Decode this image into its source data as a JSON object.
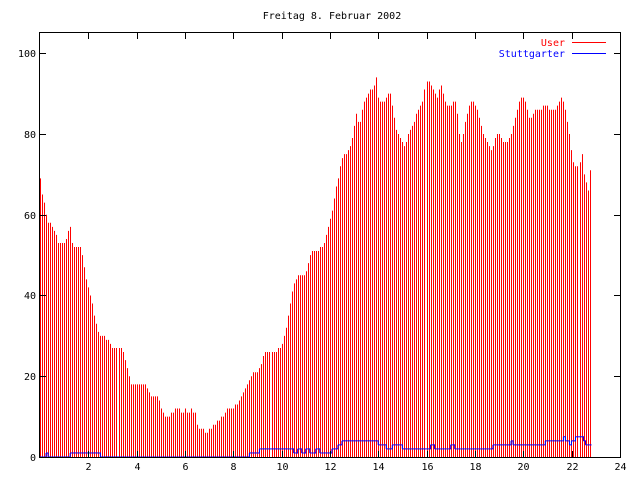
{
  "chart_data": {
    "type": "bar",
    "title": "Freitag 8. Februar 2002",
    "xlabel": "",
    "ylabel": "",
    "xlim": [
      0,
      24
    ],
    "ylim": [
      0,
      105
    ],
    "x_ticks": [
      "2",
      "4",
      "6",
      "8",
      "10",
      "12",
      "14",
      "16",
      "18",
      "20",
      "22",
      "24"
    ],
    "y_ticks": [
      "0",
      "20",
      "40",
      "60",
      "80",
      "100"
    ],
    "grid": false,
    "legend_position": "top-right",
    "interval_hours": 0.0833,
    "series": [
      {
        "name": "User",
        "style": "impulses",
        "color": "#ff0000",
        "values": [
          69,
          65,
          63,
          60,
          58,
          58,
          57,
          56,
          55,
          53,
          53,
          53,
          53,
          54,
          56,
          57,
          53,
          52,
          52,
          52,
          52,
          50,
          47,
          44,
          42,
          40,
          38,
          35,
          33,
          31,
          30,
          30,
          30,
          29,
          29,
          28,
          27,
          27,
          27,
          27,
          27,
          26,
          24,
          22,
          20,
          18,
          18,
          18,
          18,
          18,
          18,
          18,
          18,
          17,
          16,
          15,
          15,
          15,
          15,
          14,
          12,
          11,
          10,
          10,
          10,
          11,
          11,
          12,
          12,
          12,
          11,
          11,
          12,
          11,
          11,
          12,
          11,
          11,
          8,
          7,
          7,
          7,
          6,
          6,
          7,
          7,
          8,
          8,
          9,
          9,
          10,
          10,
          11,
          12,
          12,
          12,
          12,
          13,
          13,
          14,
          15,
          16,
          17,
          18,
          19,
          20,
          21,
          21,
          21,
          22,
          23,
          25,
          26,
          26,
          26,
          26,
          26,
          26,
          27,
          27,
          28,
          30,
          32,
          35,
          38,
          41,
          43,
          44,
          45,
          45,
          45,
          45,
          46,
          48,
          50,
          51,
          51,
          51,
          51,
          52,
          52,
          53,
          55,
          57,
          59,
          61,
          64,
          67,
          69,
          72,
          74,
          75,
          75,
          76,
          77,
          79,
          82,
          85,
          83,
          83,
          86,
          88,
          89,
          90,
          91,
          91,
          92,
          94,
          89,
          88,
          88,
          88,
          89,
          90,
          90,
          87,
          84,
          81,
          80,
          79,
          78,
          77,
          78,
          80,
          81,
          82,
          83,
          85,
          86,
          87,
          88,
          91,
          93,
          93,
          92,
          91,
          90,
          89,
          91,
          92,
          90,
          88,
          87,
          87,
          87,
          88,
          88,
          85,
          80,
          78,
          80,
          83,
          85,
          87,
          88,
          88,
          87,
          86,
          84,
          82,
          80,
          79,
          78,
          77,
          76,
          77,
          79,
          80,
          80,
          79,
          78,
          78,
          78,
          79,
          80,
          82,
          84,
          86,
          88,
          89,
          89,
          88,
          86,
          84,
          84,
          85,
          86,
          86,
          86,
          86,
          87,
          87,
          87,
          86,
          86,
          86,
          86,
          87,
          88,
          89,
          88,
          86,
          83,
          80,
          76,
          73,
          72,
          72,
          73,
          75,
          70,
          68,
          66,
          71
        ]
      },
      {
        "name": "Stuttgarter",
        "style": "steps",
        "color": "#0000ff",
        "values": [
          0,
          0,
          0,
          1,
          0,
          0,
          0,
          0,
          0,
          0,
          0,
          0,
          0,
          0,
          0,
          1,
          1,
          1,
          1,
          1,
          1,
          1,
          1,
          1,
          1,
          1,
          1,
          1,
          1,
          1,
          0,
          0,
          0,
          0,
          0,
          0,
          0,
          0,
          0,
          0,
          0,
          0,
          0,
          0,
          0,
          0,
          0,
          0,
          0,
          0,
          0,
          0,
          0,
          0,
          0,
          0,
          0,
          0,
          0,
          0,
          0,
          0,
          0,
          0,
          0,
          0,
          0,
          0,
          0,
          0,
          0,
          0,
          0,
          0,
          0,
          0,
          0,
          0,
          0,
          0,
          0,
          0,
          0,
          0,
          0,
          0,
          0,
          0,
          0,
          0,
          0,
          0,
          0,
          0,
          0,
          0,
          0,
          0,
          0,
          0,
          0,
          0,
          0,
          0,
          1,
          1,
          1,
          1,
          1,
          2,
          2,
          2,
          2,
          2,
          2,
          2,
          2,
          2,
          2,
          2,
          2,
          2,
          2,
          2,
          2,
          2,
          1,
          1,
          2,
          2,
          1,
          1,
          2,
          2,
          1,
          1,
          1,
          2,
          2,
          1,
          1,
          1,
          1,
          1,
          1,
          2,
          2,
          2,
          3,
          3,
          4,
          4,
          4,
          4,
          4,
          4,
          4,
          4,
          4,
          4,
          4,
          4,
          4,
          4,
          4,
          4,
          4,
          4,
          3,
          3,
          3,
          3,
          2,
          2,
          2,
          3,
          3,
          3,
          3,
          3,
          2,
          2,
          2,
          2,
          2,
          2,
          2,
          2,
          2,
          2,
          2,
          2,
          2,
          2,
          3,
          3,
          2,
          2,
          2,
          2,
          2,
          2,
          2,
          2,
          3,
          3,
          2,
          2,
          2,
          2,
          2,
          2,
          2,
          2,
          2,
          2,
          2,
          2,
          2,
          2,
          2,
          2,
          2,
          2,
          2,
          3,
          3,
          3,
          3,
          3,
          3,
          3,
          3,
          3,
          4,
          3,
          3,
          3,
          3,
          3,
          3,
          3,
          3,
          3,
          3,
          3,
          3,
          3,
          3,
          3,
          3,
          4,
          4,
          4,
          4,
          4,
          4,
          4,
          4,
          4,
          5,
          4,
          4,
          3,
          4,
          4,
          5,
          5,
          5,
          5,
          4,
          3,
          3,
          3
        ]
      }
    ]
  }
}
